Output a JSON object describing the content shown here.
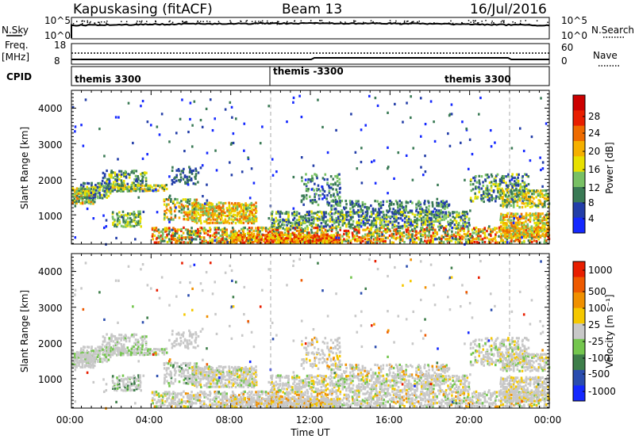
{
  "header": {
    "site": "Kapuskasing (fitACF)",
    "beam": "Beam 13",
    "date": "16/Jul/2016"
  },
  "top_panels": {
    "nsky_label": "N.Sky",
    "nsearch_label": "N.Search",
    "noise_left_ticks": [
      "10^5",
      "10^0"
    ],
    "noise_right_ticks": [
      "10^5",
      "10^0"
    ],
    "freq_label": "Freq.",
    "freq_unit": "[MHz]",
    "nave_label": "Nave",
    "freq_left_ticks": [
      "18",
      "8"
    ],
    "nave_right_ticks": [
      "60",
      "0"
    ],
    "cpid_label": "CPID",
    "cpid_segments": [
      "themis 3300",
      "themis -3300",
      "themis 3300"
    ]
  },
  "x_axis": {
    "label": "Time UT",
    "ticks": [
      "00:00",
      "04:00",
      "08:00",
      "12:00",
      "16:00",
      "20:00",
      "00:00"
    ]
  },
  "colors": {
    "power_scale": [
      "#1428ff",
      "#233ea8",
      "#3a7a55",
      "#78c064",
      "#e8e000",
      "#f5b000",
      "#ee6b00",
      "#e81e00",
      "#cc0000"
    ],
    "velocity_scale": [
      "#1428ff",
      "#2a4cae",
      "#3e7e4a",
      "#74c64e",
      "#c8c8c8",
      "#f5c800",
      "#f09000",
      "#ee5a00",
      "#e81e00"
    ]
  },
  "chart_data": [
    {
      "type": "heatmap",
      "title": "Power",
      "xlabel": "Time UT",
      "ylabel": "Slant Range [km]",
      "yticks": [
        "1000",
        "2000",
        "3000",
        "4000"
      ],
      "colorbar_label": "Power [dB]",
      "colorbar_ticks": [
        "4",
        "8",
        "12",
        "16",
        "20",
        "24",
        "28"
      ],
      "colorbar_range": [
        0,
        30
      ],
      "x_range_hours": [
        0,
        24
      ],
      "y_range_km": [
        180,
        4500
      ],
      "cpid_changes_hours": [
        10,
        22
      ]
    },
    {
      "type": "heatmap",
      "title": "Velocity",
      "xlabel": "Time UT",
      "ylabel": "Slant Range [km]",
      "yticks": [
        "1000",
        "2000",
        "3000",
        "4000"
      ],
      "colorbar_label": "Velocity [m s⁻¹]",
      "colorbar_ticks": [
        "1000",
        "500",
        "100",
        "25",
        "-25",
        "-100",
        "-500",
        "-1000"
      ],
      "x_range_hours": [
        0,
        24
      ],
      "y_range_km": [
        180,
        4500
      ],
      "cpid_changes_hours": [
        10,
        22
      ]
    }
  ]
}
